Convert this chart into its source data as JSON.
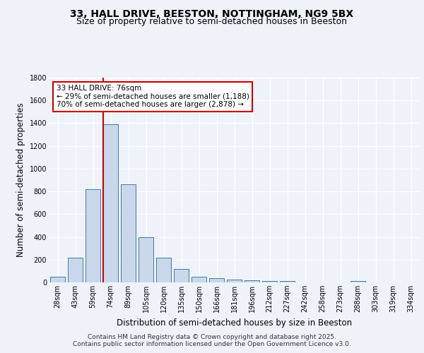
{
  "title1": "33, HALL DRIVE, BEESTON, NOTTINGHAM, NG9 5BX",
  "title2": "Size of property relative to semi-detached houses in Beeston",
  "xlabel": "Distribution of semi-detached houses by size in Beeston",
  "ylabel": "Number of semi-detached properties",
  "categories": [
    "28sqm",
    "43sqm",
    "59sqm",
    "74sqm",
    "89sqm",
    "105sqm",
    "120sqm",
    "135sqm",
    "150sqm",
    "166sqm",
    "181sqm",
    "196sqm",
    "212sqm",
    "227sqm",
    "242sqm",
    "258sqm",
    "273sqm",
    "288sqm",
    "303sqm",
    "319sqm",
    "334sqm"
  ],
  "values": [
    50,
    220,
    820,
    1390,
    860,
    395,
    220,
    120,
    50,
    35,
    25,
    20,
    15,
    10,
    0,
    0,
    0,
    15,
    0,
    0,
    0
  ],
  "bar_color": "#c8d8ea",
  "bar_edge_color": "#4477aa",
  "vline_color": "#cc0000",
  "vline_index": 3,
  "annotation_title": "33 HALL DRIVE: 76sqm",
  "annotation_line1": "← 29% of semi-detached houses are smaller (1,188)",
  "annotation_line2": "70% of semi-detached houses are larger (2,878) →",
  "annotation_box_color": "#ffffff",
  "annotation_box_edge": "#cc0000",
  "ylim": [
    0,
    1800
  ],
  "yticks": [
    0,
    200,
    400,
    600,
    800,
    1000,
    1200,
    1400,
    1600,
    1800
  ],
  "footer1": "Contains HM Land Registry data © Crown copyright and database right 2025.",
  "footer2": "Contains public sector information licensed under the Open Government Licence v3.0.",
  "bg_color": "#eef3fa",
  "plot_bg_color": "#eef3fa",
  "grid_color": "#ffffff",
  "title_fontsize": 10,
  "subtitle_fontsize": 9,
  "tick_fontsize": 7,
  "label_fontsize": 8.5,
  "footer_fontsize": 6.5
}
